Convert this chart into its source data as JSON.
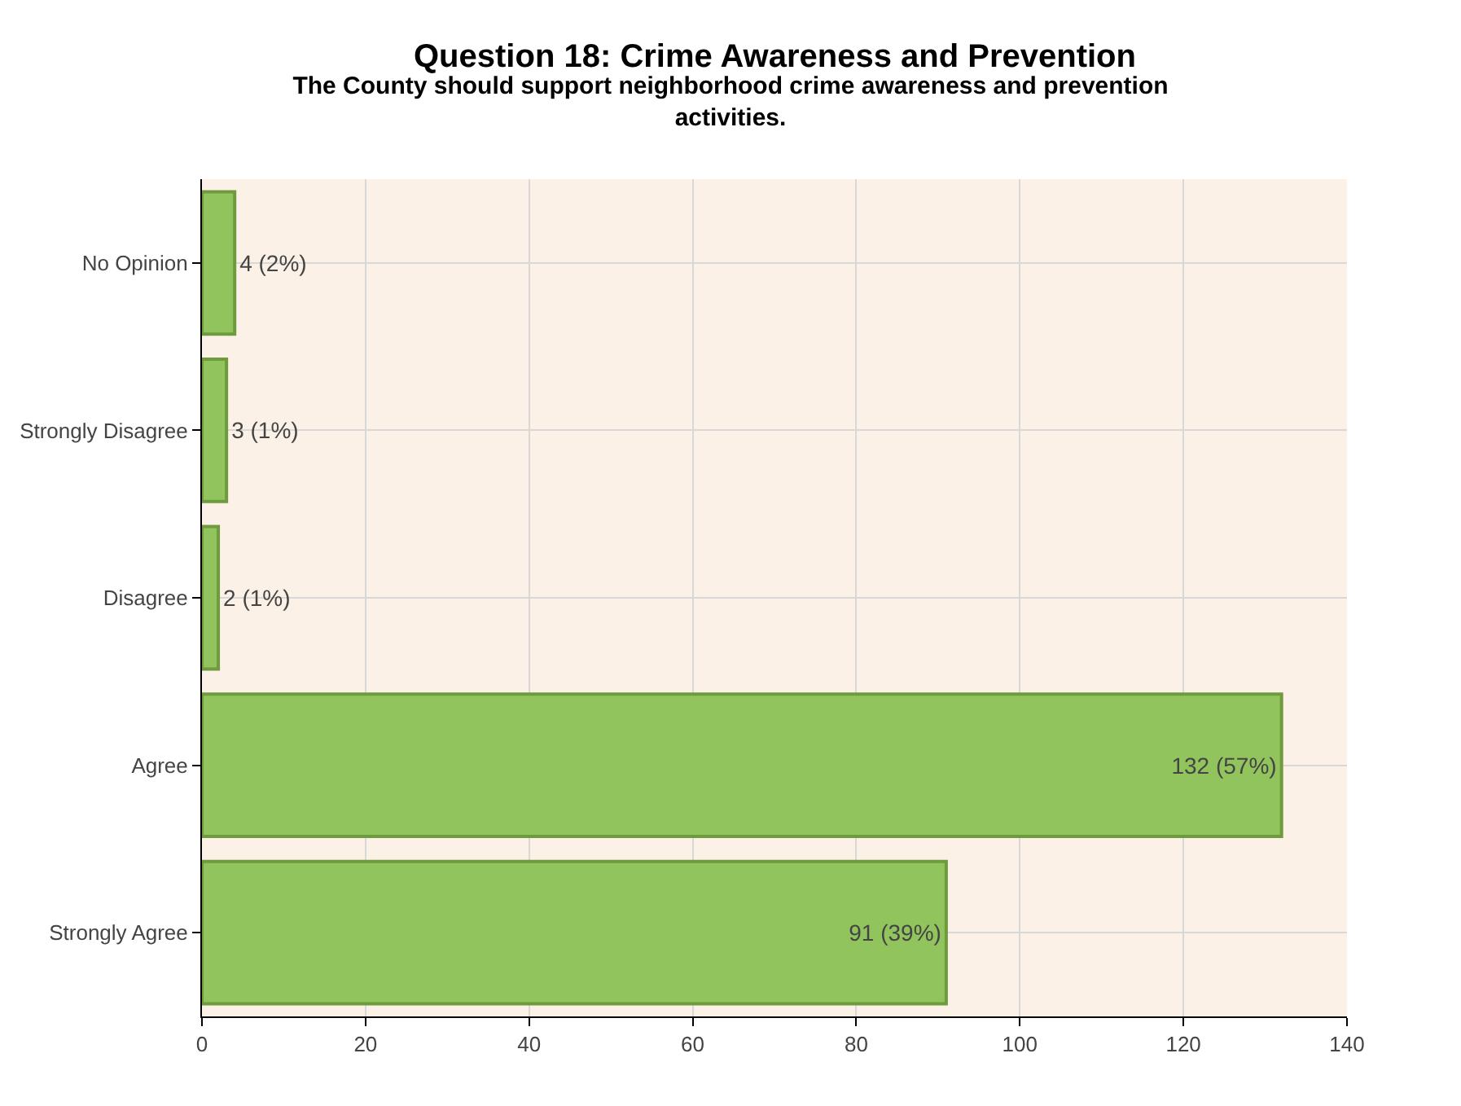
{
  "chart_data": {
    "type": "bar",
    "orientation": "horizontal",
    "title": "The County should support neighborhood crime awareness and prevention activities.",
    "annotations": [
      "Question 18: Crime Awareness and Prevention"
    ],
    "categories": [
      "No Opinion",
      "Strongly Disagree",
      "Disagree",
      "Agree",
      "Strongly Agree"
    ],
    "values": [
      4,
      3,
      2,
      132,
      91
    ],
    "value_labels": [
      "4 (2%)",
      "3 (1%)",
      "2 (1%)",
      "132 (57%)",
      "91 (39%)"
    ],
    "color": "#92c45e",
    "xlim": [
      0,
      140
    ],
    "xticks": [
      0,
      20,
      40,
      60,
      80,
      100,
      120,
      140
    ],
    "grid": true
  }
}
